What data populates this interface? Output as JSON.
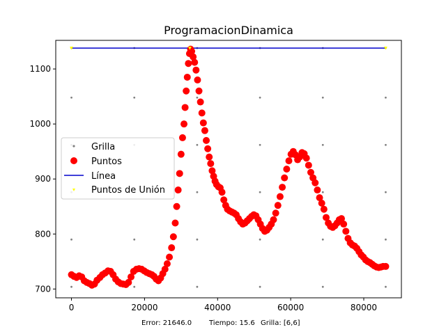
{
  "chart_data": {
    "type": "scatter",
    "title": "ProgramacionDinamica",
    "xlabel": "",
    "ylabel": "",
    "xlim": [
      -4300,
      90300
    ],
    "ylim": [
      684,
      1152
    ],
    "x_ticks": [
      {
        "value": 0,
        "label": "0"
      },
      {
        "value": 20000,
        "label": "20000"
      },
      {
        "value": 40000,
        "label": "40000"
      },
      {
        "value": 60000,
        "label": "60000"
      },
      {
        "value": 80000,
        "label": "80000"
      }
    ],
    "y_ticks": [
      {
        "value": 700,
        "label": "700"
      },
      {
        "value": 800,
        "label": "800"
      },
      {
        "value": 900,
        "label": "900"
      },
      {
        "value": 1000,
        "label": "1000"
      },
      {
        "value": 1100,
        "label": "1100"
      }
    ],
    "legend_position": "center-left",
    "series": [
      {
        "name": "Grilla",
        "kind": "grid-points",
        "color": "#808080",
        "x": [
          0,
          17200,
          34400,
          51600,
          68800,
          86000
        ],
        "y": [
          704,
          790,
          876,
          962,
          1048,
          1138
        ]
      },
      {
        "name": "Puntos",
        "kind": "points",
        "color": "#ff0000",
        "points": [
          [
            0,
            726
          ],
          [
            700,
            723
          ],
          [
            1400,
            721
          ],
          [
            2100,
            724
          ],
          [
            2800,
            722
          ],
          [
            3500,
            715
          ],
          [
            4200,
            712
          ],
          [
            4900,
            710
          ],
          [
            5600,
            707
          ],
          [
            6300,
            709
          ],
          [
            7000,
            716
          ],
          [
            7800,
            721
          ],
          [
            8500,
            726
          ],
          [
            9200,
            729
          ],
          [
            10000,
            733
          ],
          [
            10700,
            732
          ],
          [
            11400,
            726
          ],
          [
            12100,
            718
          ],
          [
            12800,
            713
          ],
          [
            13500,
            710
          ],
          [
            14200,
            709
          ],
          [
            14900,
            708
          ],
          [
            15600,
            712
          ],
          [
            16300,
            722
          ],
          [
            17000,
            732
          ],
          [
            17800,
            736
          ],
          [
            18500,
            737
          ],
          [
            19200,
            736
          ],
          [
            19900,
            733
          ],
          [
            20600,
            730
          ],
          [
            21300,
            728
          ],
          [
            22000,
            726
          ],
          [
            22600,
            723
          ],
          [
            23200,
            718
          ],
          [
            23800,
            715
          ],
          [
            24400,
            720
          ],
          [
            25000,
            728
          ],
          [
            25600,
            736
          ],
          [
            26200,
            746
          ],
          [
            26800,
            758
          ],
          [
            27400,
            775
          ],
          [
            27900,
            795
          ],
          [
            28400,
            820
          ],
          [
            28800,
            850
          ],
          [
            29200,
            880
          ],
          [
            29600,
            910
          ],
          [
            30000,
            945
          ],
          [
            30400,
            975
          ],
          [
            30800,
            1000
          ],
          [
            31100,
            1030
          ],
          [
            31400,
            1060
          ],
          [
            31700,
            1085
          ],
          [
            32000,
            1110
          ],
          [
            32300,
            1128
          ],
          [
            32600,
            1136
          ],
          [
            32900,
            1132
          ],
          [
            33300,
            1122
          ],
          [
            33700,
            1112
          ],
          [
            34100,
            1098
          ],
          [
            34500,
            1080
          ],
          [
            34900,
            1060
          ],
          [
            35300,
            1040
          ],
          [
            35700,
            1020
          ],
          [
            36100,
            1002
          ],
          [
            36500,
            988
          ],
          [
            36900,
            970
          ],
          [
            37300,
            955
          ],
          [
            37700,
            940
          ],
          [
            38100,
            928
          ],
          [
            38500,
            915
          ],
          [
            38900,
            905
          ],
          [
            39300,
            896
          ],
          [
            39700,
            890
          ],
          [
            40200,
            886
          ],
          [
            40700,
            884
          ],
          [
            41200,
            876
          ],
          [
            41700,
            862
          ],
          [
            42200,
            852
          ],
          [
            42700,
            845
          ],
          [
            43300,
            842
          ],
          [
            43900,
            840
          ],
          [
            44500,
            838
          ],
          [
            45100,
            835
          ],
          [
            45700,
            828
          ],
          [
            46300,
            822
          ],
          [
            46900,
            818
          ],
          [
            47500,
            820
          ],
          [
            48100,
            824
          ],
          [
            48700,
            828
          ],
          [
            49300,
            832
          ],
          [
            49900,
            835
          ],
          [
            50500,
            833
          ],
          [
            51100,
            826
          ],
          [
            51700,
            818
          ],
          [
            52300,
            810
          ],
          [
            52900,
            805
          ],
          [
            53500,
            807
          ],
          [
            54100,
            812
          ],
          [
            54700,
            818
          ],
          [
            55300,
            826
          ],
          [
            55900,
            838
          ],
          [
            56500,
            852
          ],
          [
            57100,
            868
          ],
          [
            57700,
            885
          ],
          [
            58300,
            902
          ],
          [
            58900,
            918
          ],
          [
            59500,
            933
          ],
          [
            60100,
            945
          ],
          [
            60700,
            950
          ],
          [
            61300,
            944
          ],
          [
            61900,
            935
          ],
          [
            62500,
            940
          ],
          [
            63100,
            948
          ],
          [
            63700,
            946
          ],
          [
            64300,
            938
          ],
          [
            64900,
            925
          ],
          [
            65500,
            912
          ],
          [
            66100,
            902
          ],
          [
            66700,
            893
          ],
          [
            67300,
            880
          ],
          [
            67900,
            866
          ],
          [
            68500,
            856
          ],
          [
            69100,
            845
          ],
          [
            69700,
            830
          ],
          [
            70300,
            820
          ],
          [
            70900,
            814
          ],
          [
            71500,
            812
          ],
          [
            72100,
            815
          ],
          [
            72700,
            820
          ],
          [
            73300,
            826
          ],
          [
            73900,
            828
          ],
          [
            74500,
            818
          ],
          [
            75100,
            805
          ],
          [
            75700,
            792
          ],
          [
            76300,
            784
          ],
          [
            76900,
            780
          ],
          [
            77500,
            778
          ],
          [
            78100,
            774
          ],
          [
            78700,
            768
          ],
          [
            79300,
            762
          ],
          [
            79900,
            758
          ],
          [
            80500,
            753
          ],
          [
            81100,
            750
          ],
          [
            81700,
            748
          ],
          [
            82300,
            745
          ],
          [
            82900,
            742
          ],
          [
            83500,
            740
          ],
          [
            84100,
            739
          ],
          [
            84700,
            740
          ],
          [
            85300,
            741
          ],
          [
            86000,
            741
          ]
        ]
      },
      {
        "name": "Línea",
        "kind": "line",
        "color": "#0000cc",
        "x": [
          0,
          86000
        ],
        "y": [
          1138,
          1138
        ]
      },
      {
        "name": "Puntos de Unión",
        "kind": "join-points",
        "color": "#ffff00",
        "x": [
          0,
          32400,
          86000
        ],
        "y": [
          1138,
          1138,
          1138
        ]
      }
    ],
    "footer": {
      "error": "Error: 21646.0",
      "tiempo": "Tiempo: 15.6",
      "grilla": "Grilla: [6,6]"
    }
  }
}
